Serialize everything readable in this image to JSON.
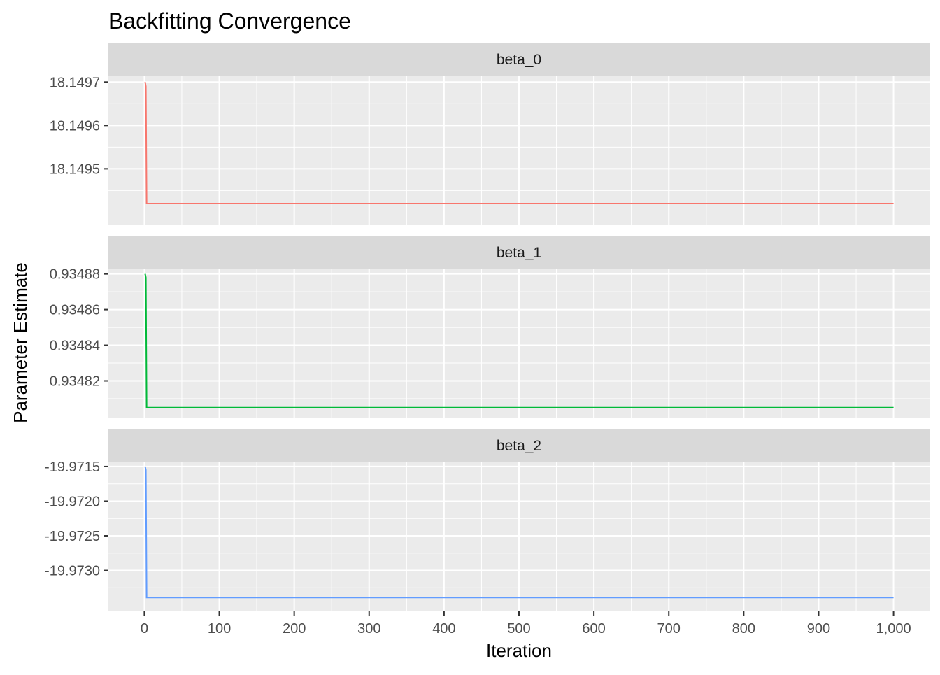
{
  "chart_data": {
    "type": "line",
    "title": "Backfitting Convergence",
    "xlabel": "Iteration",
    "ylabel": "Parameter Estimate",
    "xlim": [
      -48,
      1048
    ],
    "x_ticks": [
      0,
      100,
      200,
      300,
      400,
      500,
      600,
      700,
      800,
      900,
      1000
    ],
    "x_tick_labels": [
      "0",
      "100",
      "200",
      "300",
      "400",
      "500",
      "600",
      "700",
      "800",
      "900",
      "1,000"
    ],
    "grid": true,
    "legend": "none",
    "panels": [
      {
        "name": "beta_0",
        "color": "#F8766D",
        "ylim": [
          18.14937,
          18.149715
        ],
        "y_ticks": [
          18.1495,
          18.1496,
          18.1497
        ],
        "y_tick_labels": [
          "18.1495",
          "18.1496",
          "18.1497"
        ],
        "x": [
          1,
          2,
          3,
          1000
        ],
        "y": [
          18.1497,
          18.14969,
          18.14942,
          18.14942
        ]
      },
      {
        "name": "beta_1",
        "color": "#00BA38",
        "ylim": [
          0.934799,
          0.934883
        ],
        "y_ticks": [
          0.93482,
          0.93484,
          0.93486,
          0.93488
        ],
        "y_tick_labels": [
          "0.93482",
          "0.93484",
          "0.93486",
          "0.93488"
        ],
        "x": [
          1,
          2,
          3,
          1000
        ],
        "y": [
          0.93488,
          0.934878,
          0.934805,
          0.934805
        ]
      },
      {
        "name": "beta_2",
        "color": "#619CFF",
        "ylim": [
          -19.97359,
          -19.97143
        ],
        "y_ticks": [
          -19.973,
          -19.9725,
          -19.972,
          -19.9715
        ],
        "y_tick_labels": [
          "-19.9730",
          "-19.9725",
          "-19.9720",
          "-19.9715"
        ],
        "x": [
          1,
          2,
          3,
          1000
        ],
        "y": [
          -19.9715,
          -19.97155,
          -19.97339,
          -19.97339
        ]
      }
    ]
  }
}
